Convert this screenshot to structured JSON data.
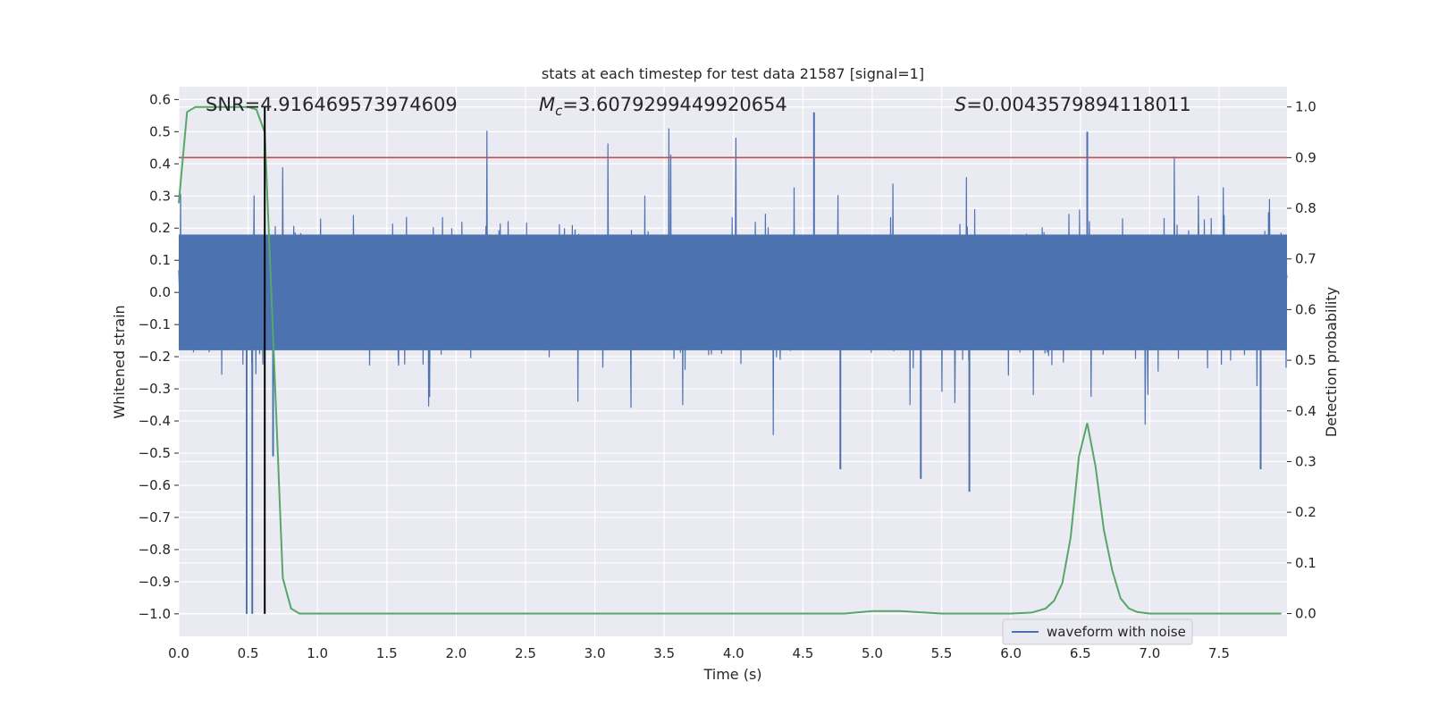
{
  "chart_data": {
    "type": "line",
    "title": "stats at each timestep for test data 21587 [signal=1]",
    "xlabel": "Time (s)",
    "ylabel": "Whitened strain",
    "y2label": "Detection probability",
    "xlim": [
      0.0,
      7.99
    ],
    "ylim": [
      -1.07,
      0.64
    ],
    "y2lim": [
      -0.045,
      1.04
    ],
    "x_ticks": [
      "0.0",
      "0.5",
      "1.0",
      "1.5",
      "2.0",
      "2.5",
      "3.0",
      "3.5",
      "4.0",
      "4.5",
      "5.0",
      "5.5",
      "6.0",
      "6.5",
      "7.0",
      "7.5"
    ],
    "y_ticks": [
      "0.6",
      "0.5",
      "0.4",
      "0.3",
      "0.2",
      "0.1",
      "0.0",
      "−0.1",
      "−0.2",
      "−0.3",
      "−0.4",
      "−0.5",
      "−0.6",
      "−0.7",
      "−0.8",
      "−0.9",
      "−1.0"
    ],
    "y2_ticks": [
      "1.0",
      "0.9",
      "0.8",
      "0.7",
      "0.6",
      "0.5",
      "0.4",
      "0.3",
      "0.2",
      "0.1",
      "0.0"
    ],
    "annotations": {
      "snr": "SNR=4.916469573974609",
      "mc_symbol": "M",
      "mc_sub": "c",
      "mc_value": "=3.6079299449920654",
      "s_symbol": "S",
      "s_value": "=0.0043579894118011"
    },
    "legend": [
      "waveform with noise"
    ],
    "threshold_line": {
      "axis": "y2",
      "value": 0.9,
      "color": "#c44e52"
    },
    "peak_marker_x": 0.62,
    "series": [
      {
        "name": "waveform with noise",
        "axis": "y",
        "color": "#4c72b0",
        "description": "dense noisy whitened strain, mostly within [-0.25, 0.25]",
        "typical_range": [
          -0.25,
          0.25
        ],
        "extreme_spikes": [
          {
            "x": 0.49,
            "y": -1.0
          },
          {
            "x": 0.53,
            "y": -1.0
          },
          {
            "x": 0.68,
            "y": -0.51
          },
          {
            "x": 4.58,
            "y": 0.56
          },
          {
            "x": 4.77,
            "y": -0.55
          },
          {
            "x": 5.35,
            "y": -0.58
          },
          {
            "x": 5.7,
            "y": -0.62
          },
          {
            "x": 6.55,
            "y": 0.5
          },
          {
            "x": 7.8,
            "y": -0.55
          }
        ]
      },
      {
        "name": "detection probability",
        "axis": "y2",
        "color": "#55a868",
        "x": [
          0.0,
          0.06,
          0.12,
          0.2,
          0.3,
          0.4,
          0.5,
          0.56,
          0.62,
          0.68,
          0.75,
          0.81,
          0.87,
          1.0,
          1.2,
          1.5,
          2.0,
          2.5,
          3.0,
          3.5,
          4.0,
          4.5,
          4.8,
          5.0,
          5.2,
          5.5,
          5.8,
          6.0,
          6.15,
          6.25,
          6.31,
          6.37,
          6.43,
          6.49,
          6.55,
          6.61,
          6.67,
          6.73,
          6.79,
          6.85,
          6.91,
          7.0,
          7.2,
          7.5,
          7.8,
          7.95
        ],
        "values": [
          0.81,
          0.99,
          1.0,
          1.0,
          1.0,
          1.0,
          1.0,
          0.995,
          0.95,
          0.55,
          0.07,
          0.01,
          0.0,
          0.0,
          0.0,
          0.0,
          0.0,
          0.0,
          0.0,
          0.0,
          0.0,
          0.0,
          0.0,
          0.005,
          0.005,
          0.0,
          0.0,
          0.0,
          0.002,
          0.01,
          0.025,
          0.06,
          0.15,
          0.31,
          0.376,
          0.29,
          0.165,
          0.085,
          0.03,
          0.01,
          0.003,
          0.0,
          0.0,
          0.0,
          0.0,
          0.0
        ]
      }
    ]
  }
}
